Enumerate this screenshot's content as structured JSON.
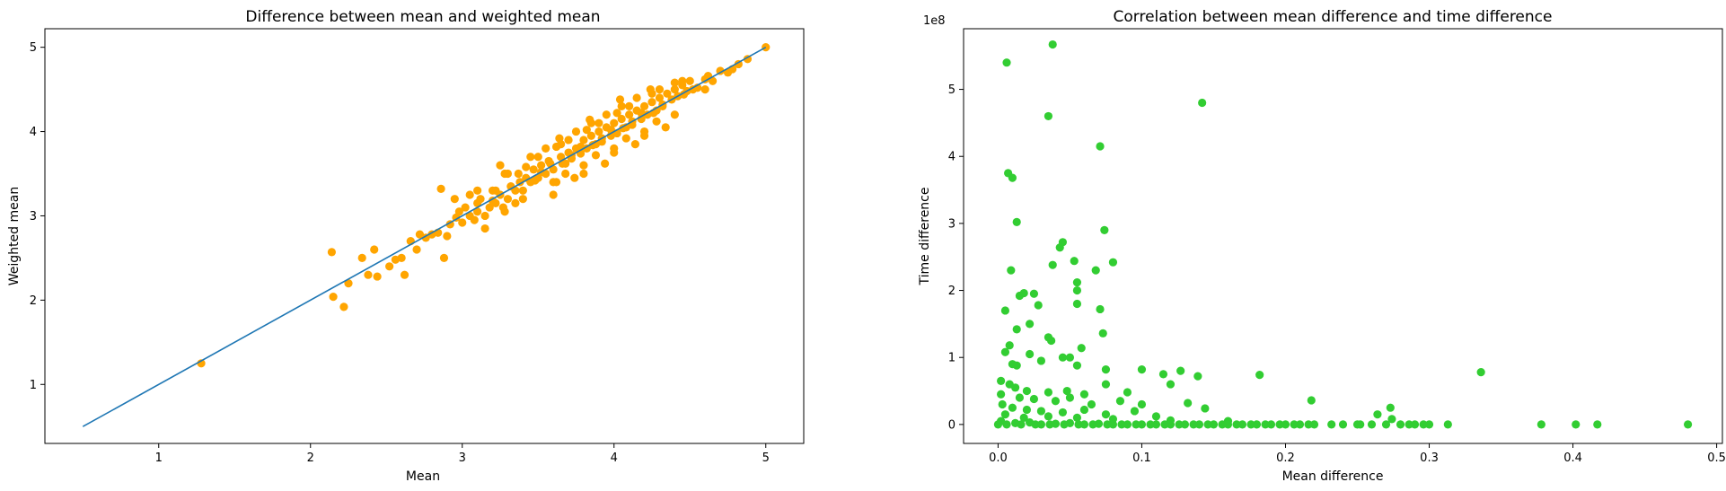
{
  "chart_data": [
    {
      "type": "scatter",
      "title": "Difference between mean and weighted mean",
      "xlabel": "Mean",
      "ylabel": "Weighted mean",
      "xlim": [
        0.25,
        5.25
      ],
      "ylim": [
        0.3,
        5.22
      ],
      "xticks": [
        1,
        2,
        3,
        4,
        5
      ],
      "yticks": [
        1,
        2,
        3,
        4,
        5
      ],
      "grid": false,
      "point_color": "#ffa500",
      "reference_line": {
        "x": [
          0.5,
          5.0
        ],
        "y": [
          0.5,
          5.0
        ],
        "color": "#1f77b4"
      },
      "points": [
        [
          1.28,
          1.25
        ],
        [
          2.14,
          2.57
        ],
        [
          2.15,
          2.04
        ],
        [
          2.22,
          1.92
        ],
        [
          2.25,
          2.2
        ],
        [
          2.34,
          2.5
        ],
        [
          2.38,
          2.3
        ],
        [
          2.42,
          2.6
        ],
        [
          2.44,
          2.28
        ],
        [
          2.52,
          2.4
        ],
        [
          2.56,
          2.48
        ],
        [
          2.6,
          2.5
        ],
        [
          2.62,
          2.3
        ],
        [
          2.66,
          2.7
        ],
        [
          2.7,
          2.6
        ],
        [
          2.72,
          2.78
        ],
        [
          2.76,
          2.74
        ],
        [
          2.8,
          2.78
        ],
        [
          2.84,
          2.8
        ],
        [
          2.86,
          3.32
        ],
        [
          2.88,
          2.5
        ],
        [
          2.9,
          2.76
        ],
        [
          2.92,
          2.9
        ],
        [
          2.96,
          2.98
        ],
        [
          3.0,
          2.92
        ],
        [
          3.02,
          3.1
        ],
        [
          3.05,
          3.0
        ],
        [
          3.08,
          2.95
        ],
        [
          3.1,
          3.05
        ],
        [
          3.12,
          3.2
        ],
        [
          3.15,
          3.0
        ],
        [
          3.18,
          3.1
        ],
        [
          3.2,
          3.3
        ],
        [
          3.22,
          3.15
        ],
        [
          3.25,
          3.25
        ],
        [
          3.27,
          3.1
        ],
        [
          3.28,
          3.5
        ],
        [
          3.3,
          3.2
        ],
        [
          3.32,
          3.35
        ],
        [
          3.35,
          3.3
        ],
        [
          3.37,
          3.5
        ],
        [
          3.4,
          3.3
        ],
        [
          3.42,
          3.45
        ],
        [
          3.45,
          3.4
        ],
        [
          3.47,
          3.55
        ],
        [
          3.5,
          3.45
        ],
        [
          3.52,
          3.6
        ],
        [
          3.55,
          3.5
        ],
        [
          3.57,
          3.65
        ],
        [
          3.6,
          3.55
        ],
        [
          3.62,
          3.4
        ],
        [
          3.65,
          3.7
        ],
        [
          3.68,
          3.62
        ],
        [
          3.7,
          3.75
        ],
        [
          3.72,
          3.68
        ],
        [
          3.75,
          3.8
        ],
        [
          3.78,
          3.74
        ],
        [
          3.8,
          3.9
        ],
        [
          3.82,
          3.8
        ],
        [
          3.85,
          3.95
        ],
        [
          3.88,
          3.85
        ],
        [
          3.9,
          4.0
        ],
        [
          3.92,
          3.88
        ],
        [
          3.95,
          4.05
        ],
        [
          3.98,
          3.95
        ],
        [
          4.0,
          4.1
        ],
        [
          4.02,
          3.98
        ],
        [
          4.05,
          4.15
        ],
        [
          4.08,
          4.05
        ],
        [
          4.1,
          4.2
        ],
        [
          4.12,
          4.08
        ],
        [
          4.15,
          4.25
        ],
        [
          4.18,
          4.15
        ],
        [
          4.2,
          4.3
        ],
        [
          4.22,
          4.2
        ],
        [
          4.25,
          4.35
        ],
        [
          4.28,
          4.25
        ],
        [
          4.3,
          4.4
        ],
        [
          4.32,
          4.3
        ],
        [
          4.35,
          4.45
        ],
        [
          4.38,
          4.38
        ],
        [
          4.4,
          4.5
        ],
        [
          4.42,
          4.42
        ],
        [
          4.45,
          4.55
        ],
        [
          4.48,
          4.48
        ],
        [
          4.5,
          4.6
        ],
        [
          4.55,
          4.52
        ],
        [
          4.6,
          4.62
        ],
        [
          4.65,
          4.6
        ],
        [
          4.7,
          4.72
        ],
        [
          4.75,
          4.7
        ],
        [
          4.82,
          4.8
        ],
        [
          4.88,
          4.86
        ],
        [
          5.0,
          5.0
        ],
        [
          3.1,
          3.3
        ],
        [
          3.3,
          3.5
        ],
        [
          3.5,
          3.7
        ],
        [
          3.7,
          3.9
        ],
        [
          3.9,
          4.1
        ],
        [
          4.1,
          4.3
        ],
        [
          4.3,
          4.5
        ],
        [
          3.4,
          3.2
        ],
        [
          3.6,
          3.4
        ],
        [
          3.8,
          3.6
        ],
        [
          4.0,
          3.8
        ],
        [
          4.2,
          4.0
        ],
        [
          4.4,
          4.2
        ],
        [
          3.25,
          3.6
        ],
        [
          3.45,
          3.7
        ],
        [
          3.65,
          3.85
        ],
        [
          3.85,
          4.1
        ],
        [
          4.05,
          4.3
        ],
        [
          4.25,
          4.45
        ],
        [
          4.45,
          4.6
        ],
        [
          3.6,
          3.25
        ],
        [
          3.8,
          3.5
        ],
        [
          4.0,
          3.75
        ],
        [
          4.2,
          3.95
        ],
        [
          3.55,
          3.8
        ],
        [
          3.75,
          4.0
        ],
        [
          3.95,
          4.2
        ],
        [
          4.15,
          4.4
        ],
        [
          3.35,
          3.15
        ],
        [
          3.15,
          2.85
        ],
        [
          2.95,
          3.2
        ],
        [
          3.05,
          3.25
        ],
        [
          4.6,
          4.5
        ],
        [
          4.4,
          4.58
        ],
        [
          3.68,
          3.5
        ],
        [
          3.88,
          3.72
        ],
        [
          4.08,
          3.92
        ],
        [
          4.28,
          4.12
        ],
        [
          3.42,
          3.58
        ],
        [
          3.62,
          3.82
        ],
        [
          3.82,
          4.02
        ],
        [
          4.02,
          4.22
        ],
        [
          3.58,
          3.62
        ],
        [
          3.78,
          3.82
        ],
        [
          3.98,
          4.02
        ],
        [
          4.18,
          4.22
        ],
        [
          3.48,
          3.42
        ],
        [
          3.66,
          3.62
        ],
        [
          3.86,
          3.84
        ],
        [
          4.06,
          4.04
        ],
        [
          4.26,
          4.22
        ],
        [
          4.46,
          4.44
        ],
        [
          3.2,
          3.18
        ],
        [
          3.38,
          3.4
        ],
        [
          3.52,
          3.52
        ],
        [
          3.72,
          3.72
        ],
        [
          3.92,
          3.92
        ],
        [
          4.12,
          4.12
        ],
        [
          4.32,
          4.32
        ],
        [
          4.52,
          4.5
        ],
        [
          4.62,
          4.66
        ],
        [
          4.78,
          4.74
        ],
        [
          3.64,
          3.92
        ],
        [
          3.84,
          4.14
        ],
        [
          4.04,
          4.38
        ],
        [
          4.24,
          4.5
        ],
        [
          3.74,
          3.45
        ],
        [
          3.94,
          3.62
        ],
        [
          4.14,
          3.85
        ],
        [
          4.34,
          4.05
        ],
        [
          3.28,
          3.05
        ],
        [
          2.98,
          3.05
        ],
        [
          3.1,
          3.15
        ],
        [
          3.22,
          3.3
        ]
      ]
    },
    {
      "type": "scatter",
      "title": "Correlation between mean difference and time difference",
      "xlabel": "Mean difference",
      "ylabel": "Time difference",
      "offset_text": "1e8",
      "xlim": [
        -0.024,
        0.504
      ],
      "ylim": [
        -0.283,
        5.905
      ],
      "xticks": [
        0.0,
        0.1,
        0.2,
        0.3,
        0.4,
        0.5
      ],
      "xtick_labels": [
        "0.0",
        "0.1",
        "0.2",
        "0.3",
        "0.4",
        "0.5"
      ],
      "yticks": [
        0,
        1,
        2,
        3,
        4,
        5
      ],
      "grid": false,
      "point_color": "#32cd32",
      "points": [
        [
          0.038,
          5.67
        ],
        [
          0.006,
          5.4
        ],
        [
          0.142,
          4.8
        ],
        [
          0.035,
          4.6
        ],
        [
          0.071,
          4.15
        ],
        [
          0.007,
          3.75
        ],
        [
          0.01,
          3.68
        ],
        [
          0.013,
          3.02
        ],
        [
          0.074,
          2.9
        ],
        [
          0.045,
          2.72
        ],
        [
          0.043,
          2.64
        ],
        [
          0.053,
          2.44
        ],
        [
          0.08,
          2.42
        ],
        [
          0.038,
          2.38
        ],
        [
          0.009,
          2.3
        ],
        [
          0.068,
          2.3
        ],
        [
          0.055,
          2.12
        ],
        [
          0.055,
          2.0
        ],
        [
          0.018,
          1.96
        ],
        [
          0.015,
          1.92
        ],
        [
          0.025,
          1.95
        ],
        [
          0.005,
          1.7
        ],
        [
          0.028,
          1.78
        ],
        [
          0.055,
          1.8
        ],
        [
          0.071,
          1.72
        ],
        [
          0.022,
          1.5
        ],
        [
          0.013,
          1.42
        ],
        [
          0.073,
          1.36
        ],
        [
          0.035,
          1.3
        ],
        [
          0.037,
          1.25
        ],
        [
          0.008,
          1.18
        ],
        [
          0.058,
          1.14
        ],
        [
          0.005,
          1.08
        ],
        [
          0.022,
          1.05
        ],
        [
          0.045,
          1.0
        ],
        [
          0.05,
          1.0
        ],
        [
          0.03,
          0.95
        ],
        [
          0.01,
          0.9
        ],
        [
          0.013,
          0.88
        ],
        [
          0.055,
          0.88
        ],
        [
          0.075,
          0.82
        ],
        [
          0.1,
          0.82
        ],
        [
          0.127,
          0.8
        ],
        [
          0.115,
          0.75
        ],
        [
          0.139,
          0.72
        ],
        [
          0.182,
          0.74
        ],
        [
          0.336,
          0.78
        ],
        [
          0.002,
          0.65
        ],
        [
          0.008,
          0.6
        ],
        [
          0.012,
          0.55
        ],
        [
          0.02,
          0.5
        ],
        [
          0.035,
          0.48
        ],
        [
          0.048,
          0.5
        ],
        [
          0.06,
          0.45
        ],
        [
          0.075,
          0.6
        ],
        [
          0.09,
          0.48
        ],
        [
          0.12,
          0.6
        ],
        [
          0.002,
          0.45
        ],
        [
          0.015,
          0.4
        ],
        [
          0.025,
          0.38
        ],
        [
          0.04,
          0.35
        ],
        [
          0.05,
          0.4
        ],
        [
          0.065,
          0.3
        ],
        [
          0.085,
          0.35
        ],
        [
          0.1,
          0.3
        ],
        [
          0.132,
          0.32
        ],
        [
          0.144,
          0.24
        ],
        [
          0.218,
          0.36
        ],
        [
          0.273,
          0.25
        ],
        [
          0.003,
          0.3
        ],
        [
          0.01,
          0.25
        ],
        [
          0.02,
          0.22
        ],
        [
          0.03,
          0.2
        ],
        [
          0.045,
          0.18
        ],
        [
          0.06,
          0.22
        ],
        [
          0.075,
          0.15
        ],
        [
          0.095,
          0.2
        ],
        [
          0.11,
          0.12
        ],
        [
          0.264,
          0.15
        ],
        [
          0.274,
          0.08
        ],
        [
          0.005,
          0.15
        ],
        [
          0.018,
          0.1
        ],
        [
          0.035,
          0.12
        ],
        [
          0.055,
          0.1
        ],
        [
          0.08,
          0.08
        ],
        [
          0.12,
          0.06
        ],
        [
          0.16,
          0.05
        ],
        [
          0.002,
          0.05
        ],
        [
          0.012,
          0.02
        ],
        [
          0.022,
          0.03
        ],
        [
          0.03,
          0.0
        ],
        [
          0.04,
          0.01
        ],
        [
          0.05,
          0.02
        ],
        [
          0.06,
          0.0
        ],
        [
          0.07,
          0.01
        ],
        [
          0.08,
          0.0
        ],
        [
          0.09,
          0.0
        ],
        [
          0.1,
          0.0
        ],
        [
          0.11,
          0.0
        ],
        [
          0.12,
          0.0
        ],
        [
          0.13,
          0.0
        ],
        [
          0.14,
          0.0
        ],
        [
          0.15,
          0.0
        ],
        [
          0.16,
          0.0
        ],
        [
          0.17,
          0.0
        ],
        [
          0.18,
          0.0
        ],
        [
          0.19,
          0.0
        ],
        [
          0.2,
          0.0
        ],
        [
          0.21,
          0.0
        ],
        [
          0.22,
          0.0
        ],
        [
          0.24,
          0.0
        ],
        [
          0.25,
          0.0
        ],
        [
          0.26,
          0.0
        ],
        [
          0.27,
          0.0
        ],
        [
          0.28,
          0.0
        ],
        [
          0.29,
          0.0
        ],
        [
          0.3,
          0.0
        ],
        [
          0.313,
          0.0
        ],
        [
          0.378,
          0.0
        ],
        [
          0.402,
          0.0
        ],
        [
          0.417,
          0.0
        ],
        [
          0.48,
          0.0
        ],
        [
          0.0,
          0.0
        ],
        [
          0.006,
          0.0
        ],
        [
          0.016,
          0.0
        ],
        [
          0.026,
          0.0
        ],
        [
          0.036,
          0.0
        ],
        [
          0.046,
          0.0
        ],
        [
          0.056,
          0.0
        ],
        [
          0.066,
          0.0
        ],
        [
          0.076,
          0.0
        ],
        [
          0.086,
          0.0
        ],
        [
          0.096,
          0.0
        ],
        [
          0.106,
          0.0
        ],
        [
          0.116,
          0.0
        ],
        [
          0.126,
          0.0
        ],
        [
          0.136,
          0.0
        ],
        [
          0.146,
          0.0
        ],
        [
          0.156,
          0.0
        ],
        [
          0.166,
          0.0
        ],
        [
          0.176,
          0.0
        ],
        [
          0.186,
          0.0
        ],
        [
          0.196,
          0.0
        ],
        [
          0.206,
          0.0
        ],
        [
          0.216,
          0.0
        ],
        [
          0.232,
          0.0
        ],
        [
          0.252,
          0.0
        ],
        [
          0.286,
          0.0
        ],
        [
          0.296,
          0.0
        ]
      ]
    }
  ]
}
